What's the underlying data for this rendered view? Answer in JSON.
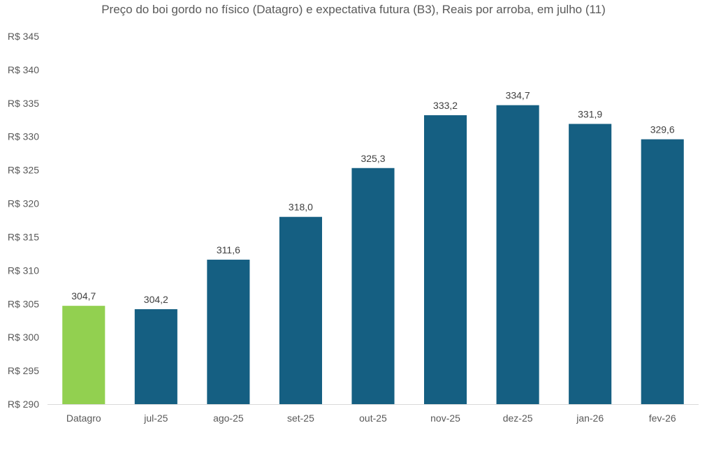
{
  "chart_data": {
    "type": "bar",
    "title": "Preço do boi gordo no físico (Datagro)  e expectativa futura (B3), Reais por arroba, em julho (11)",
    "xlabel": "",
    "ylabel": "",
    "categories": [
      "Datagro",
      "jul-25",
      "ago-25",
      "set-25",
      "out-25",
      "nov-25",
      "dez-25",
      "jan-26",
      "fev-26"
    ],
    "values": [
      304.7,
      304.2,
      311.6,
      318.0,
      325.3,
      333.2,
      334.7,
      331.9,
      329.6
    ],
    "value_labels": [
      "304,7",
      "304,2",
      "311,6",
      "318,0",
      "325,3",
      "333,2",
      "334,7",
      "331,9",
      "329,6"
    ],
    "ylim": [
      290,
      345
    ],
    "yticks": [
      290,
      295,
      300,
      305,
      310,
      315,
      320,
      325,
      330,
      335,
      340,
      345
    ],
    "ytick_labels": [
      "R$ 290",
      "R$ 295",
      "R$ 300",
      "R$ 305",
      "R$ 310",
      "R$ 315",
      "R$ 320",
      "R$ 325",
      "R$ 330",
      "R$ 335",
      "R$ 340",
      "R$ 345"
    ],
    "grid": false,
    "colors": {
      "highlight": "#92d050",
      "bars": "#155f82",
      "axis": "#d9d9d9",
      "text": "#595959",
      "label": "#404040"
    },
    "highlight_category": "Datagro"
  }
}
